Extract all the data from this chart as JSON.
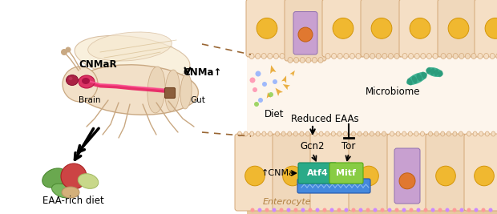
{
  "bg_color": "#ffffff",
  "left_panel": {
    "fly_body_color": "#f2e0c8",
    "fly_body_outline": "#c9a882",
    "brain_color": "#dd3366",
    "nerve_color": "#e8306a",
    "gut_marker_color": "#8B5E3C",
    "label_cnmar": "CNMaR",
    "label_cnma": "CNMa↑",
    "label_brain": "Brain",
    "label_gut": "Gut",
    "label_diet": "EAA-rich diet",
    "arrow_color": "#111111"
  },
  "right_panel": {
    "cell_body_color": "#f5dfc5",
    "cell_outline": "#d4a878",
    "nucleus_color": "#f0b830",
    "nucleus_outline": "#d4960a",
    "stem_cell_color": "#c8a0d0",
    "stem_nucleus_color": "#e07830",
    "microbiome_color": "#2aaa88",
    "diet_particle_color": "#e8a830",
    "label_diet": "Diet",
    "label_microbiome": "Microbiome",
    "label_reduced_eaas": "Reduced EAAs",
    "label_gcn2": "Gcn2",
    "label_tor": "Tor",
    "label_atf4": "Atf4",
    "label_mitf": "Mitf",
    "label_cnma": "↑CNMa",
    "label_enterocyte": "Enterocyte",
    "atf4_color": "#2aaa88",
    "mitf_color": "#88cc44",
    "dna_color": "#4488dd",
    "base_strip_color": "#d4b896",
    "lumen_bg": "#fdf5ec"
  },
  "dashed_line_color": "#996633",
  "label_fontsize": 8
}
